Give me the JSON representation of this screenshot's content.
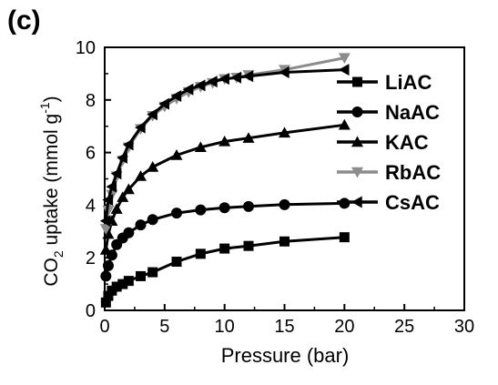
{
  "panel_label": "(c)",
  "chart_data": {
    "type": "line",
    "xlabel": "Pressure (bar)",
    "ylabel_parts": {
      "pre": "CO",
      "sub": "2",
      "mid": " uptake (mmol g",
      "sup": "-1",
      "post": ")"
    },
    "xlim": [
      0,
      30
    ],
    "ylim": [
      0,
      10
    ],
    "xticks": [
      0,
      5,
      10,
      15,
      20,
      25,
      30
    ],
    "yticks": [
      0,
      2,
      4,
      6,
      8,
      10
    ],
    "grid": false,
    "legend_position": "right",
    "series": [
      {
        "name": "LiAC",
        "marker": "square",
        "color": "#000000",
        "x": [
          0.1,
          0.3,
          0.6,
          1.0,
          1.5,
          2.0,
          3.0,
          4.0,
          6.0,
          8.0,
          10.0,
          12.0,
          15.0,
          20.0
        ],
        "y": [
          0.3,
          0.55,
          0.75,
          0.9,
          1.0,
          1.12,
          1.3,
          1.45,
          1.85,
          2.15,
          2.35,
          2.45,
          2.62,
          2.78
        ]
      },
      {
        "name": "NaAC",
        "marker": "circle",
        "color": "#000000",
        "x": [
          0.1,
          0.3,
          0.6,
          1.0,
          1.5,
          2.0,
          3.0,
          4.0,
          6.0,
          8.0,
          10.0,
          12.0,
          15.0,
          20.0
        ],
        "y": [
          1.3,
          1.7,
          2.1,
          2.5,
          2.75,
          2.95,
          3.25,
          3.45,
          3.7,
          3.82,
          3.9,
          3.95,
          4.02,
          4.07
        ]
      },
      {
        "name": "KAC",
        "marker": "triangle-up",
        "color": "#000000",
        "x": [
          0.1,
          0.3,
          0.6,
          1.0,
          1.5,
          2.0,
          3.0,
          4.0,
          6.0,
          8.0,
          10.0,
          12.0,
          15.0,
          20.0
        ],
        "y": [
          2.3,
          2.9,
          3.4,
          3.85,
          4.3,
          4.6,
          5.1,
          5.45,
          5.9,
          6.2,
          6.42,
          6.55,
          6.75,
          7.05
        ]
      },
      {
        "name": "RbAC",
        "marker": "triangle-down",
        "color": "#8c8c8c",
        "x": [
          0.1,
          0.3,
          0.6,
          1.0,
          1.5,
          2.0,
          3.0,
          4.0,
          5.0,
          6.0,
          7.0,
          8.0,
          9.0,
          10.0,
          11.0,
          12.0,
          15.0,
          20.0
        ],
        "y": [
          3.1,
          3.8,
          4.4,
          5.1,
          5.7,
          6.2,
          6.9,
          7.4,
          7.75,
          8.05,
          8.3,
          8.5,
          8.65,
          8.8,
          8.85,
          8.95,
          9.15,
          9.6
        ]
      },
      {
        "name": "CsAC",
        "marker": "triangle-left",
        "color": "#000000",
        "x": [
          0.1,
          0.3,
          0.6,
          1.0,
          1.5,
          2.0,
          3.0,
          4.0,
          5.0,
          6.0,
          7.0,
          8.0,
          9.0,
          10.0,
          11.0,
          12.0,
          15.0,
          20.0
        ],
        "y": [
          3.4,
          4.2,
          4.7,
          5.2,
          5.8,
          6.3,
          6.95,
          7.45,
          7.85,
          8.15,
          8.4,
          8.55,
          8.7,
          8.8,
          8.85,
          8.9,
          9.05,
          9.15
        ]
      }
    ]
  }
}
